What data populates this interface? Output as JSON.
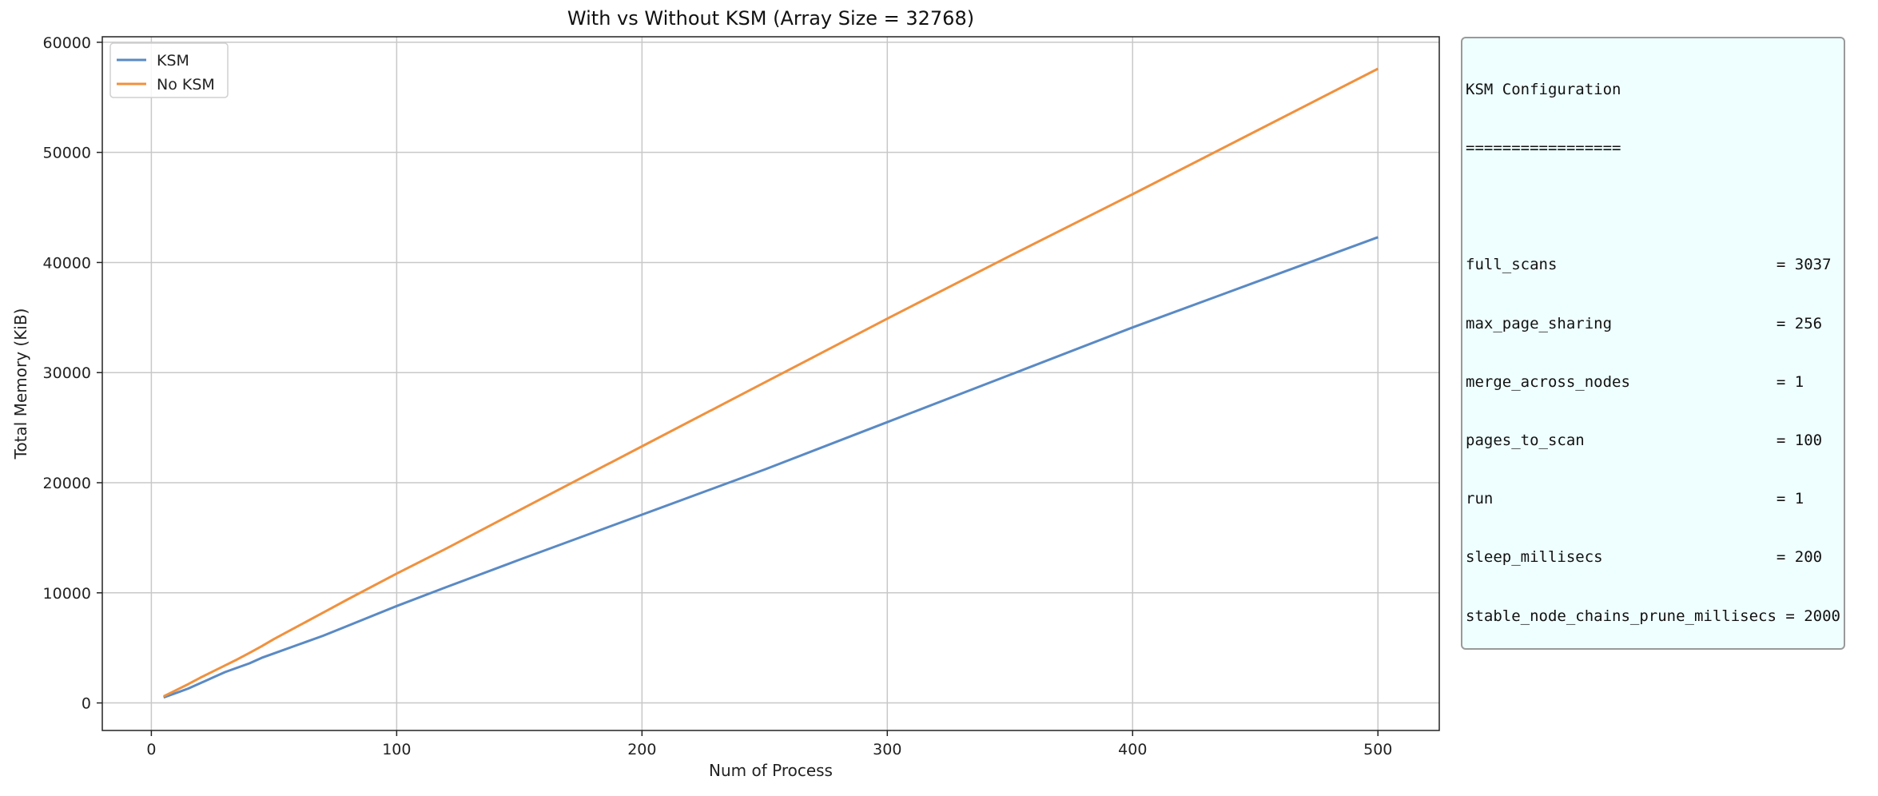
{
  "chart_data": {
    "type": "line",
    "title": "With vs Without KSM (Array Size = 32768)",
    "xlabel": "Num of Process",
    "ylabel": "Total Memory (KiB)",
    "xlim": [
      -20,
      525
    ],
    "ylim": [
      -2500,
      60500
    ],
    "x_ticks": [
      0,
      100,
      200,
      300,
      400,
      500
    ],
    "y_ticks": [
      0,
      10000,
      20000,
      30000,
      40000,
      50000,
      60000
    ],
    "grid": true,
    "legend_position": "top-left",
    "series": [
      {
        "name": "KSM",
        "color": "#5a8ac4",
        "x": [
          5,
          10,
          15,
          20,
          25,
          30,
          35,
          40,
          45,
          50,
          60,
          70,
          80,
          100,
          120,
          150,
          200,
          250,
          300,
          350,
          400,
          450,
          500
        ],
        "y": [
          500,
          900,
          1300,
          1800,
          2300,
          2800,
          3200,
          3600,
          4100,
          4500,
          5300,
          6100,
          7000,
          8800,
          10500,
          13000,
          17100,
          21200,
          25500,
          29800,
          34100,
          38200,
          42300
        ]
      },
      {
        "name": "No KSM",
        "color": "#f0913e",
        "x": [
          5,
          10,
          15,
          20,
          25,
          30,
          35,
          40,
          45,
          50,
          60,
          70,
          80,
          100,
          120,
          150,
          200,
          250,
          300,
          350,
          400,
          450,
          500
        ],
        "y": [
          600,
          1150,
          1700,
          2300,
          2850,
          3400,
          3950,
          4550,
          5150,
          5800,
          7000,
          8200,
          9400,
          11750,
          14000,
          17500,
          23300,
          29100,
          34900,
          40600,
          46200,
          51900,
          57600
        ]
      }
    ]
  },
  "config_box": {
    "title": "KSM Configuration",
    "separator": "=================",
    "lines": [
      "full_scans                        = 3037",
      "max_page_sharing                  = 256",
      "merge_across_nodes                = 1",
      "pages_to_scan                     = 100",
      "run                               = 1",
      "sleep_millisecs                   = 200",
      "stable_node_chains_prune_millisecs = 2000"
    ]
  }
}
